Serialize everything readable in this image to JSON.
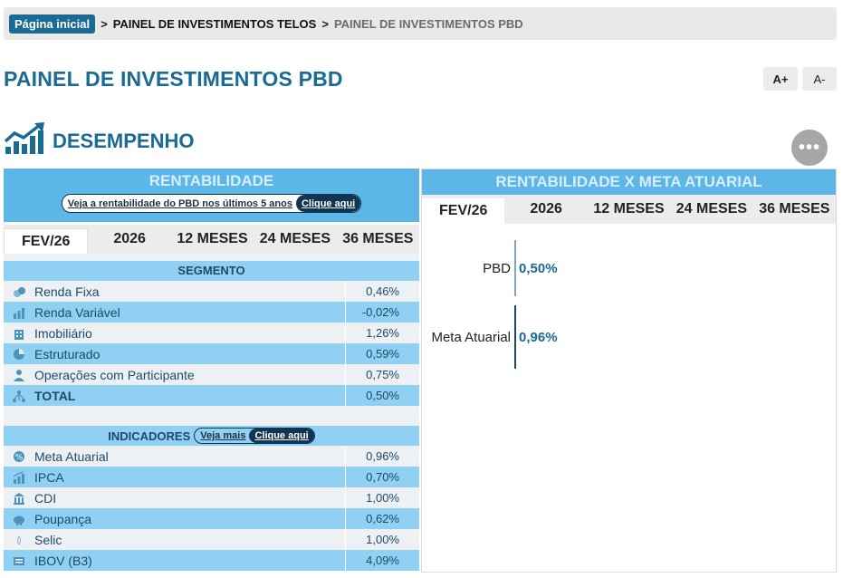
{
  "breadcrumb": {
    "home": "Página inicial",
    "sep": ">",
    "link": "PAINEL DE INVESTIMENTOS TELOS",
    "current": "PAINEL DE INVESTIMENTOS PBD"
  },
  "page_title": "PAINEL DE INVESTIMENTOS PBD",
  "font_controls": {
    "increase": "A+",
    "decrease": "A-"
  },
  "section": {
    "title": "DESEMPENHO",
    "more": "•••"
  },
  "rentabilidade": {
    "title": "RENTABILIDADE",
    "link_text": "Veja a rentabilidade do PBD nos últimos 5 anos",
    "link_button": "Clique aqui",
    "tabs": [
      "FEV/26",
      "2026",
      "12 MESES",
      "24 MESES",
      "36 MESES"
    ],
    "active_tab": "FEV/26",
    "segment_header": "SEGMENTO",
    "segments": [
      {
        "icon": "coins-icon",
        "label": "Renda Fixa",
        "value": "0,46%"
      },
      {
        "icon": "bar-chart-icon",
        "label": "Renda Variável",
        "value": "-0,02%"
      },
      {
        "icon": "building-icon",
        "label": "Imobiliário",
        "value": "1,26%"
      },
      {
        "icon": "pie-chart-icon",
        "label": "Estruturado",
        "value": "0,59%"
      },
      {
        "icon": "people-icon",
        "label": "Operações com Participante",
        "value": "0,75%"
      },
      {
        "icon": "network-icon",
        "label": "TOTAL",
        "value": "0,50%"
      }
    ],
    "indicators_header": "INDICADORES",
    "indicators_link": "Veja mais",
    "indicators_button": "Clique aqui",
    "indicators": [
      {
        "icon": "percent-icon",
        "label": "Meta Atuarial",
        "value": "0,96%"
      },
      {
        "icon": "chart-up-icon",
        "label": "IPCA",
        "value": "0,70%"
      },
      {
        "icon": "bank-icon",
        "label": "CDI",
        "value": "1,00%"
      },
      {
        "icon": "piggy-bank-icon",
        "label": "Poupança",
        "value": "0,62%"
      },
      {
        "icon": "drop-icon",
        "label": "Selic",
        "value": "1,00%"
      },
      {
        "icon": "exchange-icon",
        "label": "IBOV (B3)",
        "value": "4,09%"
      }
    ]
  },
  "comparativo": {
    "title": "RENTABILIDADE X META ATUARIAL",
    "tabs": [
      "FEV/26",
      "2026",
      "12 MESES",
      "24 MESES",
      "36 MESES"
    ],
    "active_tab": "FEV/26"
  },
  "chart_data": {
    "type": "bar",
    "title": "RENTABILIDADE X META ATUARIAL",
    "categories": [
      "PBD",
      "Meta Atuarial"
    ],
    "values": [
      0.5,
      0.96
    ],
    "value_labels": [
      "0,50%",
      "0,96%"
    ],
    "colors": [
      "#7fa7bd",
      "#1d4a5e"
    ],
    "orientation": "horizontal"
  },
  "colors": {
    "primary": "#1a6a96",
    "panel_header": "#5cb6e8",
    "row_alt": "#8fd0f3",
    "row_light": "#eef1f4"
  }
}
